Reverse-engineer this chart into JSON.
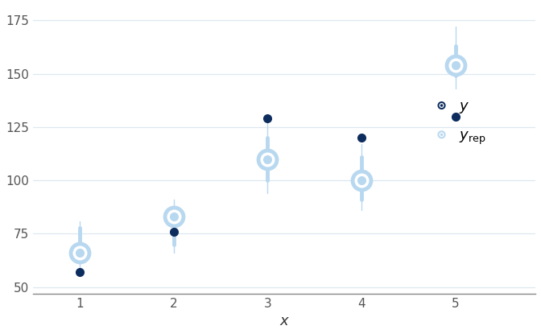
{
  "x": [
    1,
    2,
    3,
    4,
    5
  ],
  "y_obs": [
    57,
    76,
    129,
    120,
    130
  ],
  "y_rep_center": [
    66,
    83,
    110,
    100,
    154
  ],
  "y_rep_inner_low": [
    62,
    70,
    100,
    91,
    149
  ],
  "y_rep_inner_high": [
    78,
    87,
    120,
    111,
    163
  ],
  "y_rep_whisker_low": [
    58,
    66,
    94,
    86,
    143
  ],
  "y_rep_whisker_high": [
    81,
    91,
    128,
    117,
    172
  ],
  "color_obs": "#0d2d5e",
  "color_rep": "#b8d8f0",
  "color_rep_line": "#b0d0ec",
  "xlabel": "x",
  "xlim": [
    0.5,
    5.85
  ],
  "ylim": [
    47,
    182
  ],
  "yticks": [
    50,
    75,
    100,
    125,
    150,
    175
  ],
  "xticks": [
    1,
    2,
    3,
    4,
    5
  ],
  "bg_color": "#ffffff",
  "grid_color": "#dde8f0"
}
